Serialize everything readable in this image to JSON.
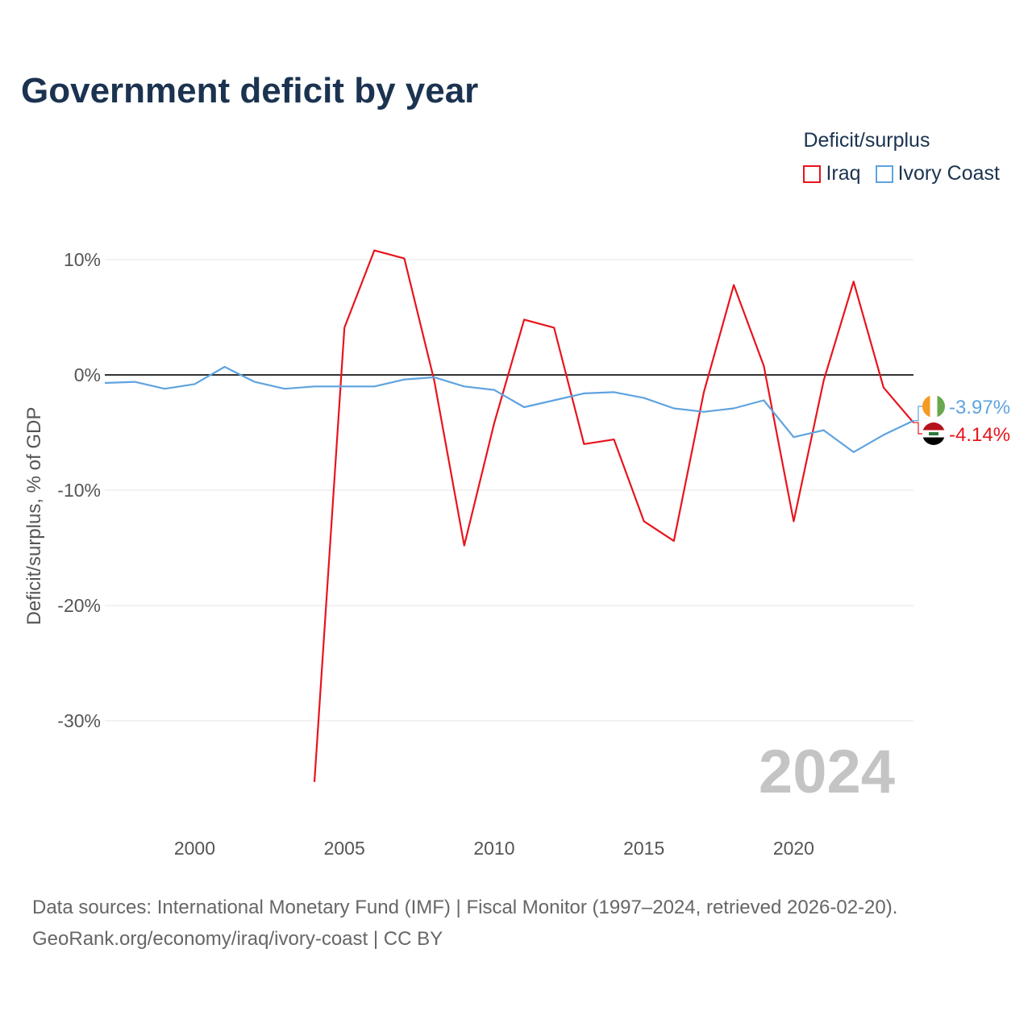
{
  "title": "Government deficit by year",
  "legend": {
    "title": "Deficit/surplus",
    "items": [
      {
        "label": "Iraq",
        "color": "#e8141c"
      },
      {
        "label": "Ivory Coast",
        "color": "#5fa3e0"
      }
    ]
  },
  "source": {
    "line1": "Data sources: International Monetary Fund (IMF) | Fiscal Monitor (1997–2024, retrieved 2026-02-20).",
    "line2": "GeoRank.org/economy/iraq/ivory-coast | CC BY"
  },
  "chart_data": {
    "type": "line",
    "ylabel": "Deficit/surplus, % of GDP",
    "xlim": [
      1997,
      2024
    ],
    "ylim": [
      -38,
      11
    ],
    "x_ticks": [
      2000,
      2005,
      2010,
      2015,
      2020
    ],
    "x_tick_labels": [
      "2000",
      "2005",
      "2010",
      "2015",
      "2020"
    ],
    "y_ticks": [
      10,
      0,
      -10,
      -20,
      -30
    ],
    "y_tick_labels": [
      "10%",
      "0%",
      "-10%",
      "-20%",
      "-30%"
    ],
    "watermark_year": "2024",
    "series": [
      {
        "name": "Iraq",
        "color": "#e8141c",
        "x": [
          2004,
          2005,
          2006,
          2007,
          2008,
          2009,
          2010,
          2011,
          2012,
          2013,
          2014,
          2015,
          2016,
          2017,
          2018,
          2019,
          2020,
          2021,
          2022,
          2023,
          2024
        ],
        "values": [
          -35.3,
          4.1,
          10.8,
          10.1,
          -0.5,
          -14.8,
          -4.2,
          4.8,
          4.1,
          -6.0,
          -5.6,
          -12.7,
          -14.4,
          -1.5,
          7.8,
          0.8,
          -12.7,
          -0.5,
          8.1,
          -1.1,
          -4.14
        ],
        "end_label": "-4.14%"
      },
      {
        "name": "Ivory Coast",
        "color": "#5fa3e0",
        "x": [
          1997,
          1998,
          1999,
          2000,
          2001,
          2002,
          2003,
          2004,
          2005,
          2006,
          2007,
          2008,
          2009,
          2010,
          2011,
          2012,
          2013,
          2014,
          2015,
          2016,
          2017,
          2018,
          2019,
          2020,
          2021,
          2022,
          2023,
          2024
        ],
        "values": [
          -0.7,
          -0.6,
          -1.2,
          -0.8,
          0.7,
          -0.6,
          -1.2,
          -1.0,
          -1.0,
          -1.0,
          -0.4,
          -0.2,
          -1.0,
          -1.3,
          -2.8,
          -2.2,
          -1.6,
          -1.5,
          -2.0,
          -2.9,
          -3.2,
          -2.9,
          -2.2,
          -5.4,
          -4.8,
          -6.7,
          -5.2,
          -3.97
        ],
        "end_label": "-3.97%"
      }
    ]
  }
}
